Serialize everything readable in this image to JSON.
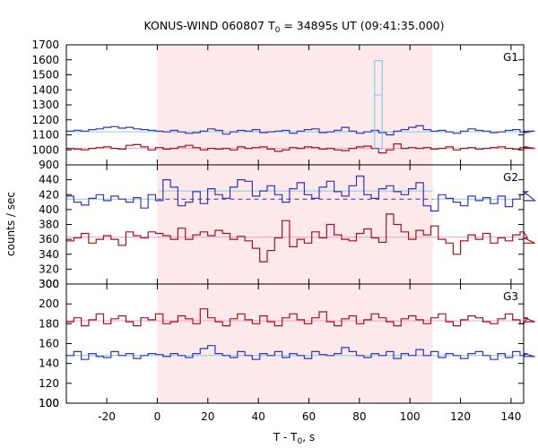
{
  "chart_data": {
    "type": "line",
    "title_prefix": "KONUS-WIND 060807 T",
    "title_sub": "0",
    "title_suffix": " = 34895s UT (09:41:35.000)",
    "ylabel": "counts / sec",
    "xlabel_prefix": "T - T",
    "xlabel_sub": "0",
    "xlabel_suffix": ", s",
    "xlim": [
      -36,
      145
    ],
    "xticks": [
      -20,
      0,
      20,
      40,
      60,
      80,
      100,
      120,
      140
    ],
    "highlight": {
      "x0": 0,
      "x1": 109,
      "color": "#fde8ea"
    },
    "panels": [
      {
        "label": "G1",
        "ylim": [
          900,
          1700
        ],
        "yticks": [
          1000,
          1100,
          1200,
          1300,
          1400,
          1500,
          1600,
          1700
        ],
        "series": [
          {
            "color": "#3535b8",
            "bg_color": "#7fd0ee",
            "background": 1120,
            "x0": -36,
            "dt": 2.944,
            "values": [
              1125,
              1130,
              1125,
              1135,
              1140,
              1150,
              1155,
              1145,
              1150,
              1140,
              1135,
              1130,
              1125,
              1120,
              1130,
              1120,
              1110,
              1115,
              1125,
              1140,
              1130,
              1105,
              1120,
              1130,
              1125,
              1135,
              1115,
              1120,
              1125,
              1130,
              1110,
              1125,
              1135,
              1140,
              1115,
              1120,
              1130,
              1150,
              1125,
              1110,
              1120,
              1130,
              1115,
              1100,
              1125,
              1135,
              1150,
              1160,
              1135,
              1125,
              1130,
              1120,
              1110,
              1125,
              1140,
              1130,
              1125,
              1115,
              1120,
              1130,
              1135,
              1120,
              1115,
              1125
            ]
          },
          {
            "color": "#a0141e",
            "bg_color": "#f4a0c8",
            "background": 1010,
            "x0": -36,
            "dt": 2.944,
            "values": [
              1010,
              1005,
              1000,
              1010,
              1015,
              1020,
              1010,
              1005,
              1030,
              1035,
              1020,
              1000,
              1015,
              1005,
              1010,
              1020,
              1030,
              1015,
              1000,
              1010,
              1005,
              1010,
              1000,
              1020,
              1010,
              1015,
              1020,
              1005,
              990,
              1000,
              1015,
              1010,
              1020,
              1015,
              1005,
              1010,
              1000,
              995,
              1010,
              1020,
              1025,
              1010,
              980,
              1000,
              1040,
              1010,
              1015,
              1010,
              1015,
              1005,
              1010,
              1020,
              1000,
              1010,
              1015,
              1005,
              1010,
              1015,
              1020,
              1010,
              1005,
              1015,
              1020,
              1010
            ]
          }
        ],
        "spike": {
          "x0": 86,
          "x1": 89,
          "top": 1595,
          "mid": 1365,
          "bottom": 1005,
          "color": "#7fd0ee"
        }
      },
      {
        "label": "G2",
        "ylim": [
          300,
          460
        ],
        "yticks": [
          300,
          320,
          340,
          360,
          380,
          400,
          420,
          440
        ],
        "series": [
          {
            "color": "#3535b8",
            "bg_color": "#7fd0ee",
            "background": 414,
            "background_after": 425,
            "bg_after_x": 0,
            "bg_end_x": 109,
            "x0": -36,
            "dt": 2.944,
            "values": [
              418,
              410,
              406,
              415,
              420,
              412,
              418,
              414,
              410,
              416,
              402,
              420,
              412,
              440,
              430,
              405,
              410,
              424,
              408,
              428,
              420,
              415,
              430,
              440,
              438,
              418,
              425,
              432,
              420,
              410,
              428,
              436,
              420,
              415,
              430,
              438,
              424,
              418,
              432,
              445,
              420,
              415,
              428,
              432,
              424,
              420,
              428,
              436,
              405,
              398,
              420,
              415,
              410,
              405,
              418,
              412,
              416,
              408,
              418,
              404,
              414,
              420,
              424,
              412
            ]
          },
          {
            "color": "#a0141e",
            "bg_color": "#f4a0c8",
            "background": 363,
            "x0": -36,
            "dt": 2.944,
            "values": [
              358,
              362,
              368,
              355,
              360,
              365,
              360,
              352,
              370,
              365,
              362,
              370,
              368,
              365,
              360,
              375,
              360,
              366,
              370,
              365,
              372,
              368,
              360,
              364,
              358,
              348,
              330,
              345,
              362,
              385,
              350,
              360,
              355,
              370,
              362,
              380,
              366,
              360,
              358,
              368,
              374,
              362,
              356,
              394,
              380,
              370,
              360,
              372,
              366,
              378,
              360,
              355,
              340,
              358,
              366,
              360,
              368,
              355,
              362,
              358,
              366,
              370,
              362,
              355
            ]
          }
        ]
      },
      {
        "label": "G3",
        "ylim": [
          100,
          220
        ],
        "yticks": [
          100,
          120,
          140,
          160,
          180,
          200
        ],
        "series": [
          {
            "color": "#3535b8",
            "bg_color": "#7fd0ee",
            "background": 148,
            "x0": -36,
            "dt": 2.944,
            "values": [
              148,
              152,
              144,
              150,
              147,
              146,
              152,
              148,
              150,
              145,
              148,
              150,
              149,
              147,
              150,
              148,
              146,
              150,
              155,
              158,
              150,
              148,
              146,
              152,
              148,
              144,
              150,
              148,
              152,
              146,
              150,
              148,
              145,
              152,
              149,
              148,
              150,
              156,
              152,
              148,
              146,
              150,
              148,
              152,
              145,
              150,
              148,
              154,
              148,
              152,
              146,
              150,
              148,
              145,
              150,
              152,
              148,
              144,
              150,
              146,
              152,
              148,
              150,
              147
            ]
          },
          {
            "color": "#a0141e",
            "bg_color": "#f4a0c8",
            "background": 183,
            "x0": -36,
            "dt": 2.944,
            "values": [
              182,
              186,
              178,
              184,
              190,
              180,
              185,
              188,
              182,
              178,
              186,
              184,
              190,
              180,
              182,
              188,
              185,
              180,
              195,
              186,
              182,
              178,
              185,
              190,
              184,
              180,
              188,
              182,
              178,
              186,
              190,
              184,
              180,
              186,
              192,
              182,
              178,
              185,
              188,
              180,
              184,
              190,
              186,
              182,
              178,
              185,
              188,
              184,
              180,
              186,
              190,
              182,
              178,
              184,
              188,
              186,
              182,
              180,
              185,
              190,
              184,
              180,
              186,
              182
            ]
          }
        ]
      }
    ]
  }
}
